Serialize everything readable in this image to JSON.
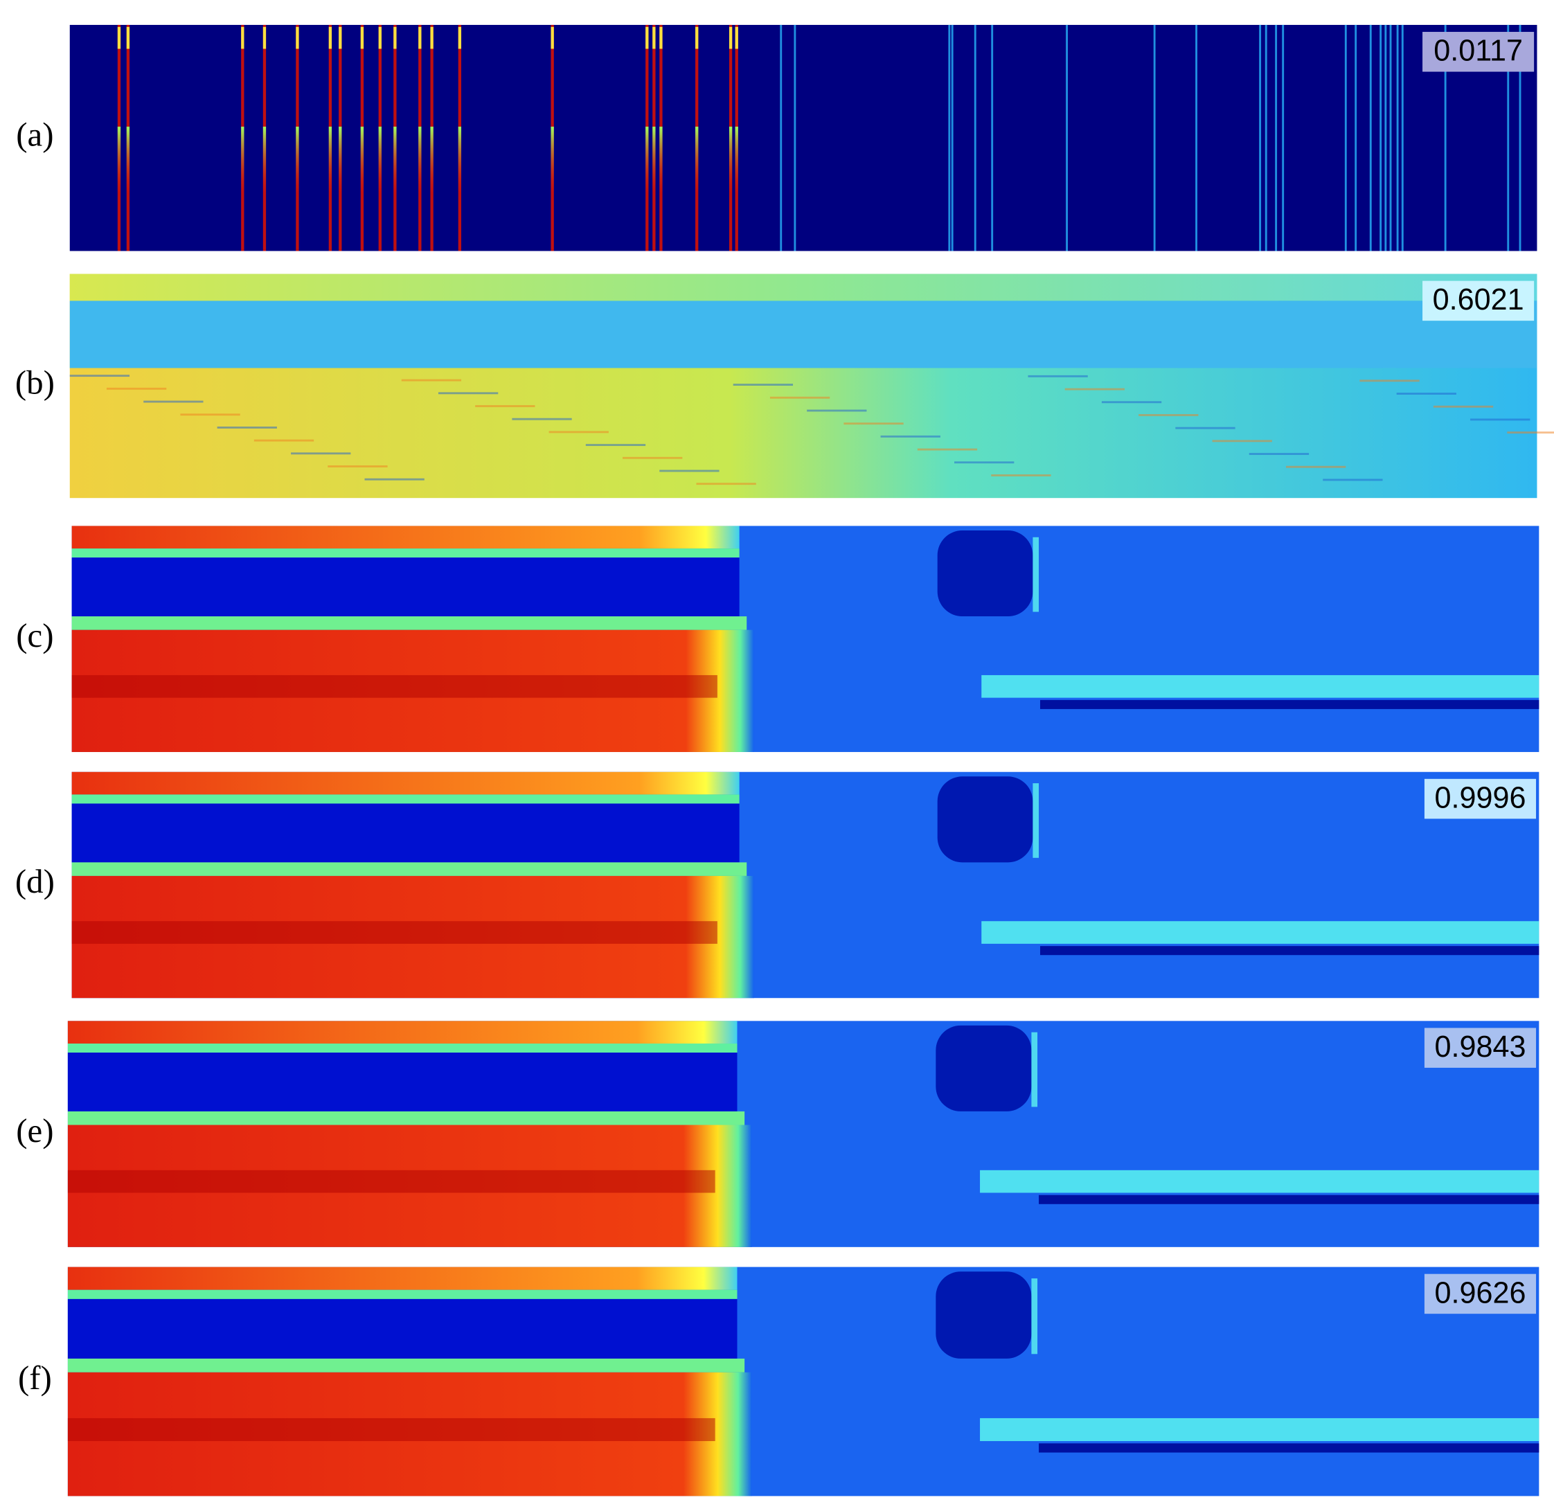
{
  "panels": [
    {
      "label": "(a)",
      "score": "0.0117"
    },
    {
      "label": "(b)",
      "score": "0.6021"
    },
    {
      "label": "(c)"
    },
    {
      "label": "(d)",
      "score": "0.9996"
    },
    {
      "label": "(e)",
      "score": "0.9843"
    },
    {
      "label": "(f)",
      "score": "0.9626"
    }
  ]
}
